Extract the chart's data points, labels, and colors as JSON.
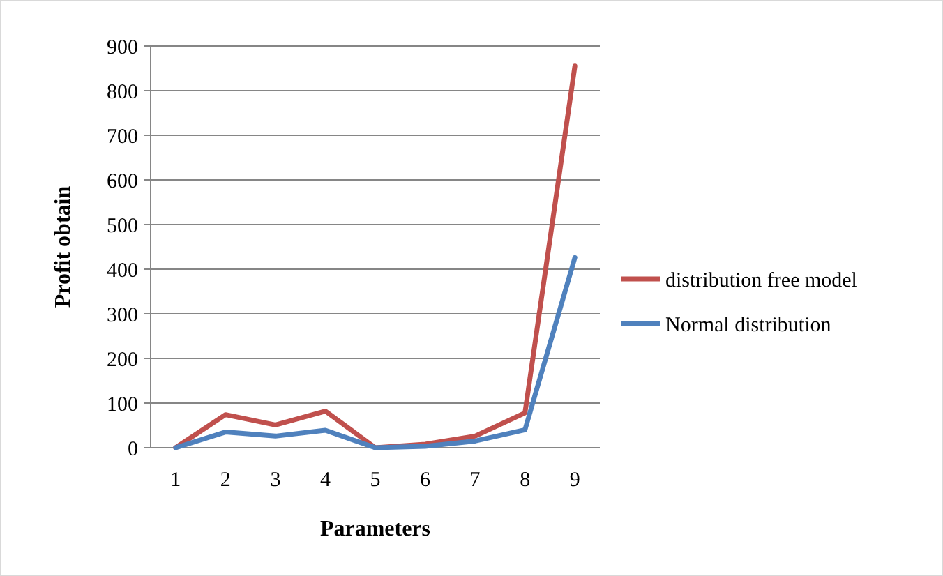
{
  "chart_data": {
    "type": "line",
    "xlabel": "Parameters",
    "ylabel": "Profit obtain",
    "categories": [
      "1",
      "2",
      "3",
      "4",
      "5",
      "6",
      "7",
      "8",
      "9"
    ],
    "series": [
      {
        "name": "distribution free model",
        "color": "#c0504d",
        "values": [
          0,
          74,
          51,
          82,
          0,
          8,
          26,
          78,
          855
        ]
      },
      {
        "name": "Normal distribution",
        "color": "#4f81bd",
        "values": [
          0,
          35,
          26,
          39,
          0,
          3,
          15,
          40,
          426
        ]
      }
    ],
    "ylim": [
      0,
      900
    ],
    "yticks": [
      0,
      100,
      200,
      300,
      400,
      500,
      600,
      700,
      800,
      900
    ],
    "grid": "y",
    "legend": "right",
    "marker": "none",
    "line_style": "solid"
  }
}
